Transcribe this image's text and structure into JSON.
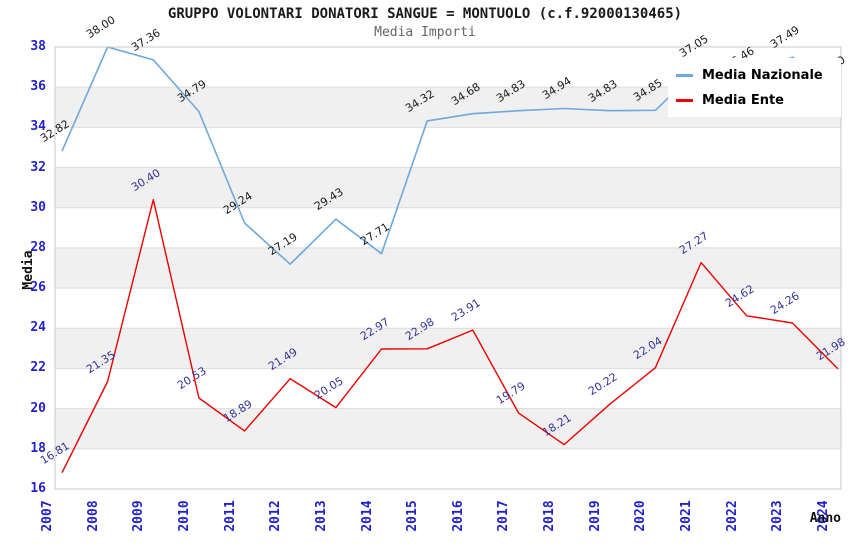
{
  "header": {
    "title": "GRUPPO VOLONTARI DONATORI SANGUE = MONTUOLO (c.f.92000130465)",
    "subtitle": "Media Importi"
  },
  "axes": {
    "y_title": "Media",
    "x_title": "Anno",
    "y_ticks": [
      16,
      18,
      20,
      22,
      24,
      26,
      28,
      30,
      32,
      34,
      36,
      38
    ],
    "x_ticks": [
      "2007",
      "2008",
      "2009",
      "2010",
      "2011",
      "2012",
      "2013",
      "2014",
      "2015",
      "2016",
      "2017",
      "2018",
      "2019",
      "2020",
      "2021",
      "2022",
      "2023",
      "2024"
    ]
  },
  "colors": {
    "tick_label": "#2222cc",
    "band_gray": "#f0f0f0",
    "band_white": "#ffffff",
    "gridline": "#dcdcdc",
    "plot_border": "#c8c8c8",
    "nazionale_line": "#6fa8dc",
    "ente_line": "#ee0000",
    "nazionale_label_text": "#1a1a1a",
    "ente_label_text": "#333399"
  },
  "legend": {
    "items": [
      {
        "label": "Media Nazionale"
      },
      {
        "label": "Media Ente"
      }
    ]
  },
  "chart_data": {
    "type": "line",
    "title": "GRUPPO VOLONTARI DONATORI SANGUE = MONTUOLO (c.f.92000130465)",
    "subtitle": "Media Importi",
    "xlabel": "Anno",
    "ylabel": "Media",
    "ylim": [
      16,
      38
    ],
    "grid": "horizontal-bands",
    "legend_position": "top-right-overlay",
    "x": [
      "2007",
      "2008",
      "2009",
      "2010",
      "2011",
      "2012",
      "2013",
      "2014",
      "2015",
      "2016",
      "2017",
      "2018",
      "2019",
      "2020",
      "2021",
      "2022",
      "2023",
      "2024"
    ],
    "series": [
      {
        "name": "Media Nazionale",
        "color": "#6fa8dc",
        "label_color": "#1a1a1a",
        "values": [
          32.82,
          38.0,
          37.36,
          34.79,
          29.24,
          27.19,
          29.43,
          27.71,
          34.32,
          34.68,
          34.83,
          34.94,
          34.83,
          34.85,
          37.05,
          36.46,
          37.49,
          36.0
        ],
        "labels_hidden_by_legend": [
          "2022",
          "2024"
        ]
      },
      {
        "name": "Media Ente",
        "color": "#ee0000",
        "label_color": "#333399",
        "values": [
          16.81,
          21.35,
          30.4,
          20.53,
          18.89,
          21.49,
          20.05,
          22.97,
          22.98,
          23.91,
          19.79,
          18.21,
          20.22,
          22.04,
          27.27,
          24.62,
          24.26,
          21.98
        ],
        "labels_hidden_by_legend": []
      }
    ]
  }
}
